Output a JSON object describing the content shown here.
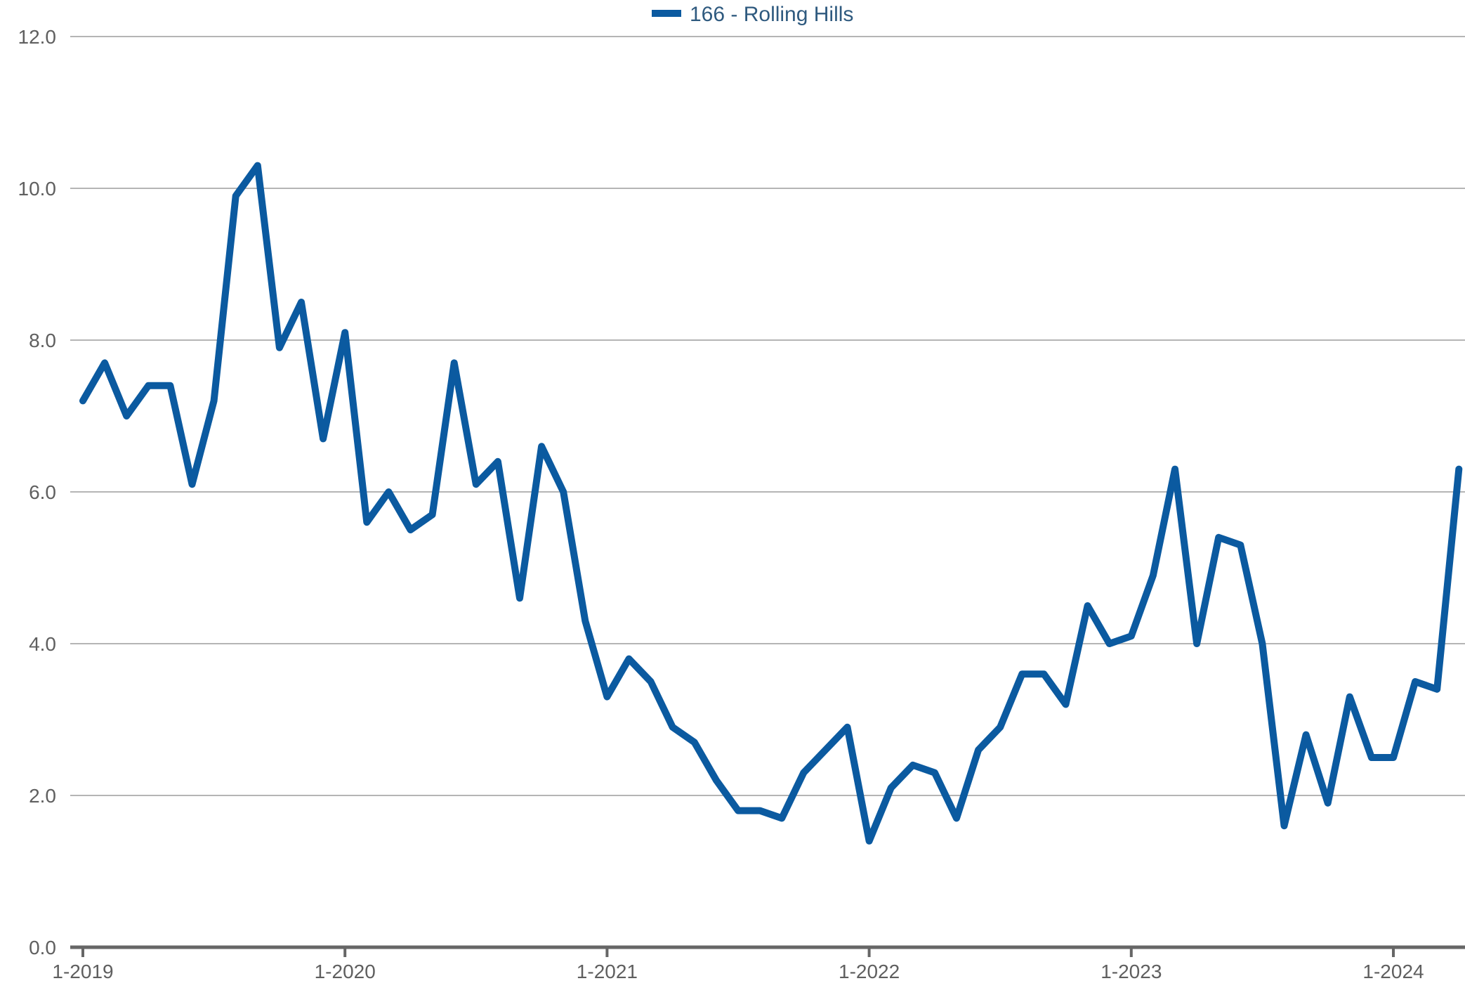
{
  "chart_data": {
    "type": "line",
    "title": "",
    "xlabel": "",
    "ylabel": "",
    "ylim": [
      0,
      12
    ],
    "y_ticks": [
      "0.0",
      "2.0",
      "4.0",
      "6.0",
      "8.0",
      "10.0",
      "12.0"
    ],
    "x_ticks": [
      "1-2019",
      "1-2020",
      "1-2021",
      "1-2022",
      "1-2023",
      "1-2024"
    ],
    "grid": true,
    "legend_position": "top-center",
    "colors": {
      "series": "#0b5aa0"
    },
    "x": [
      "1-2019",
      "2-2019",
      "3-2019",
      "4-2019",
      "5-2019",
      "6-2019",
      "7-2019",
      "8-2019",
      "9-2019",
      "10-2019",
      "11-2019",
      "12-2019",
      "1-2020",
      "2-2020",
      "3-2020",
      "4-2020",
      "5-2020",
      "6-2020",
      "7-2020",
      "8-2020",
      "9-2020",
      "10-2020",
      "11-2020",
      "12-2020",
      "1-2021",
      "2-2021",
      "3-2021",
      "4-2021",
      "5-2021",
      "6-2021",
      "7-2021",
      "8-2021",
      "9-2021",
      "10-2021",
      "11-2021",
      "12-2021",
      "1-2022",
      "2-2022",
      "3-2022",
      "4-2022",
      "5-2022",
      "6-2022",
      "7-2022",
      "8-2022",
      "9-2022",
      "10-2022",
      "11-2022",
      "12-2022",
      "1-2023",
      "2-2023",
      "3-2023",
      "4-2023",
      "5-2023",
      "6-2023",
      "7-2023",
      "8-2023",
      "9-2023",
      "10-2023",
      "11-2023",
      "12-2023",
      "1-2024",
      "2-2024",
      "3-2024",
      "4-2024"
    ],
    "series": [
      {
        "name": "166 - Rolling Hills",
        "values": [
          7.2,
          7.7,
          7.0,
          7.4,
          7.4,
          6.1,
          7.2,
          9.9,
          10.3,
          7.9,
          8.5,
          6.7,
          8.1,
          5.6,
          6.0,
          5.5,
          5.7,
          7.7,
          6.1,
          6.4,
          4.6,
          6.6,
          6.0,
          4.3,
          3.3,
          3.8,
          3.5,
          2.9,
          2.7,
          2.2,
          1.8,
          1.8,
          1.7,
          2.3,
          2.6,
          2.9,
          1.4,
          2.1,
          2.4,
          2.3,
          1.7,
          2.6,
          2.9,
          3.6,
          3.6,
          3.2,
          4.5,
          4.0,
          4.1,
          4.9,
          6.3,
          4.0,
          5.4,
          5.3,
          4.0,
          1.6,
          2.8,
          1.9,
          3.3,
          2.5,
          2.5,
          3.5,
          3.4,
          6.3
        ]
      }
    ]
  }
}
